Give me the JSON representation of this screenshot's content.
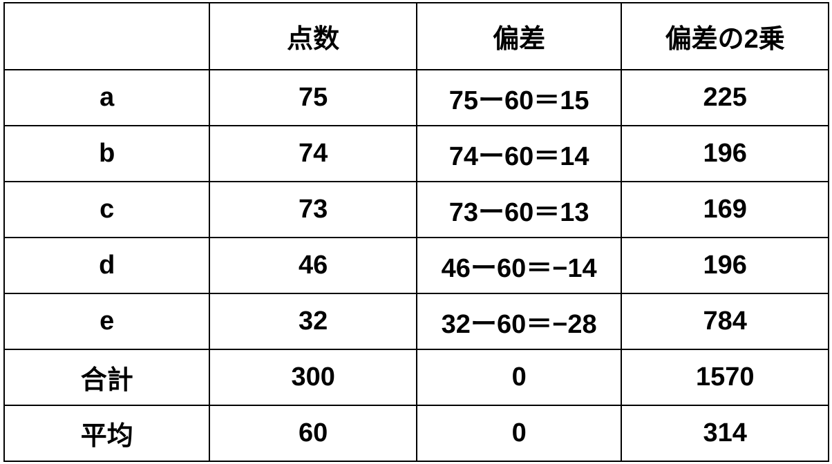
{
  "table": {
    "headers": [
      "",
      "点数",
      "偏差",
      "偏差の2乗"
    ],
    "rows": [
      [
        "a",
        "75",
        "75ー60＝15",
        "225"
      ],
      [
        "b",
        "74",
        "74ー60＝14",
        "196"
      ],
      [
        "c",
        "73",
        "73ー60＝13",
        "169"
      ],
      [
        "d",
        "46",
        "46ー60＝−14",
        "196"
      ],
      [
        "e",
        "32",
        "32ー60＝−28",
        "784"
      ],
      [
        "合計",
        "300",
        "0",
        "1570"
      ],
      [
        "平均",
        "60",
        "0",
        "314"
      ]
    ]
  }
}
